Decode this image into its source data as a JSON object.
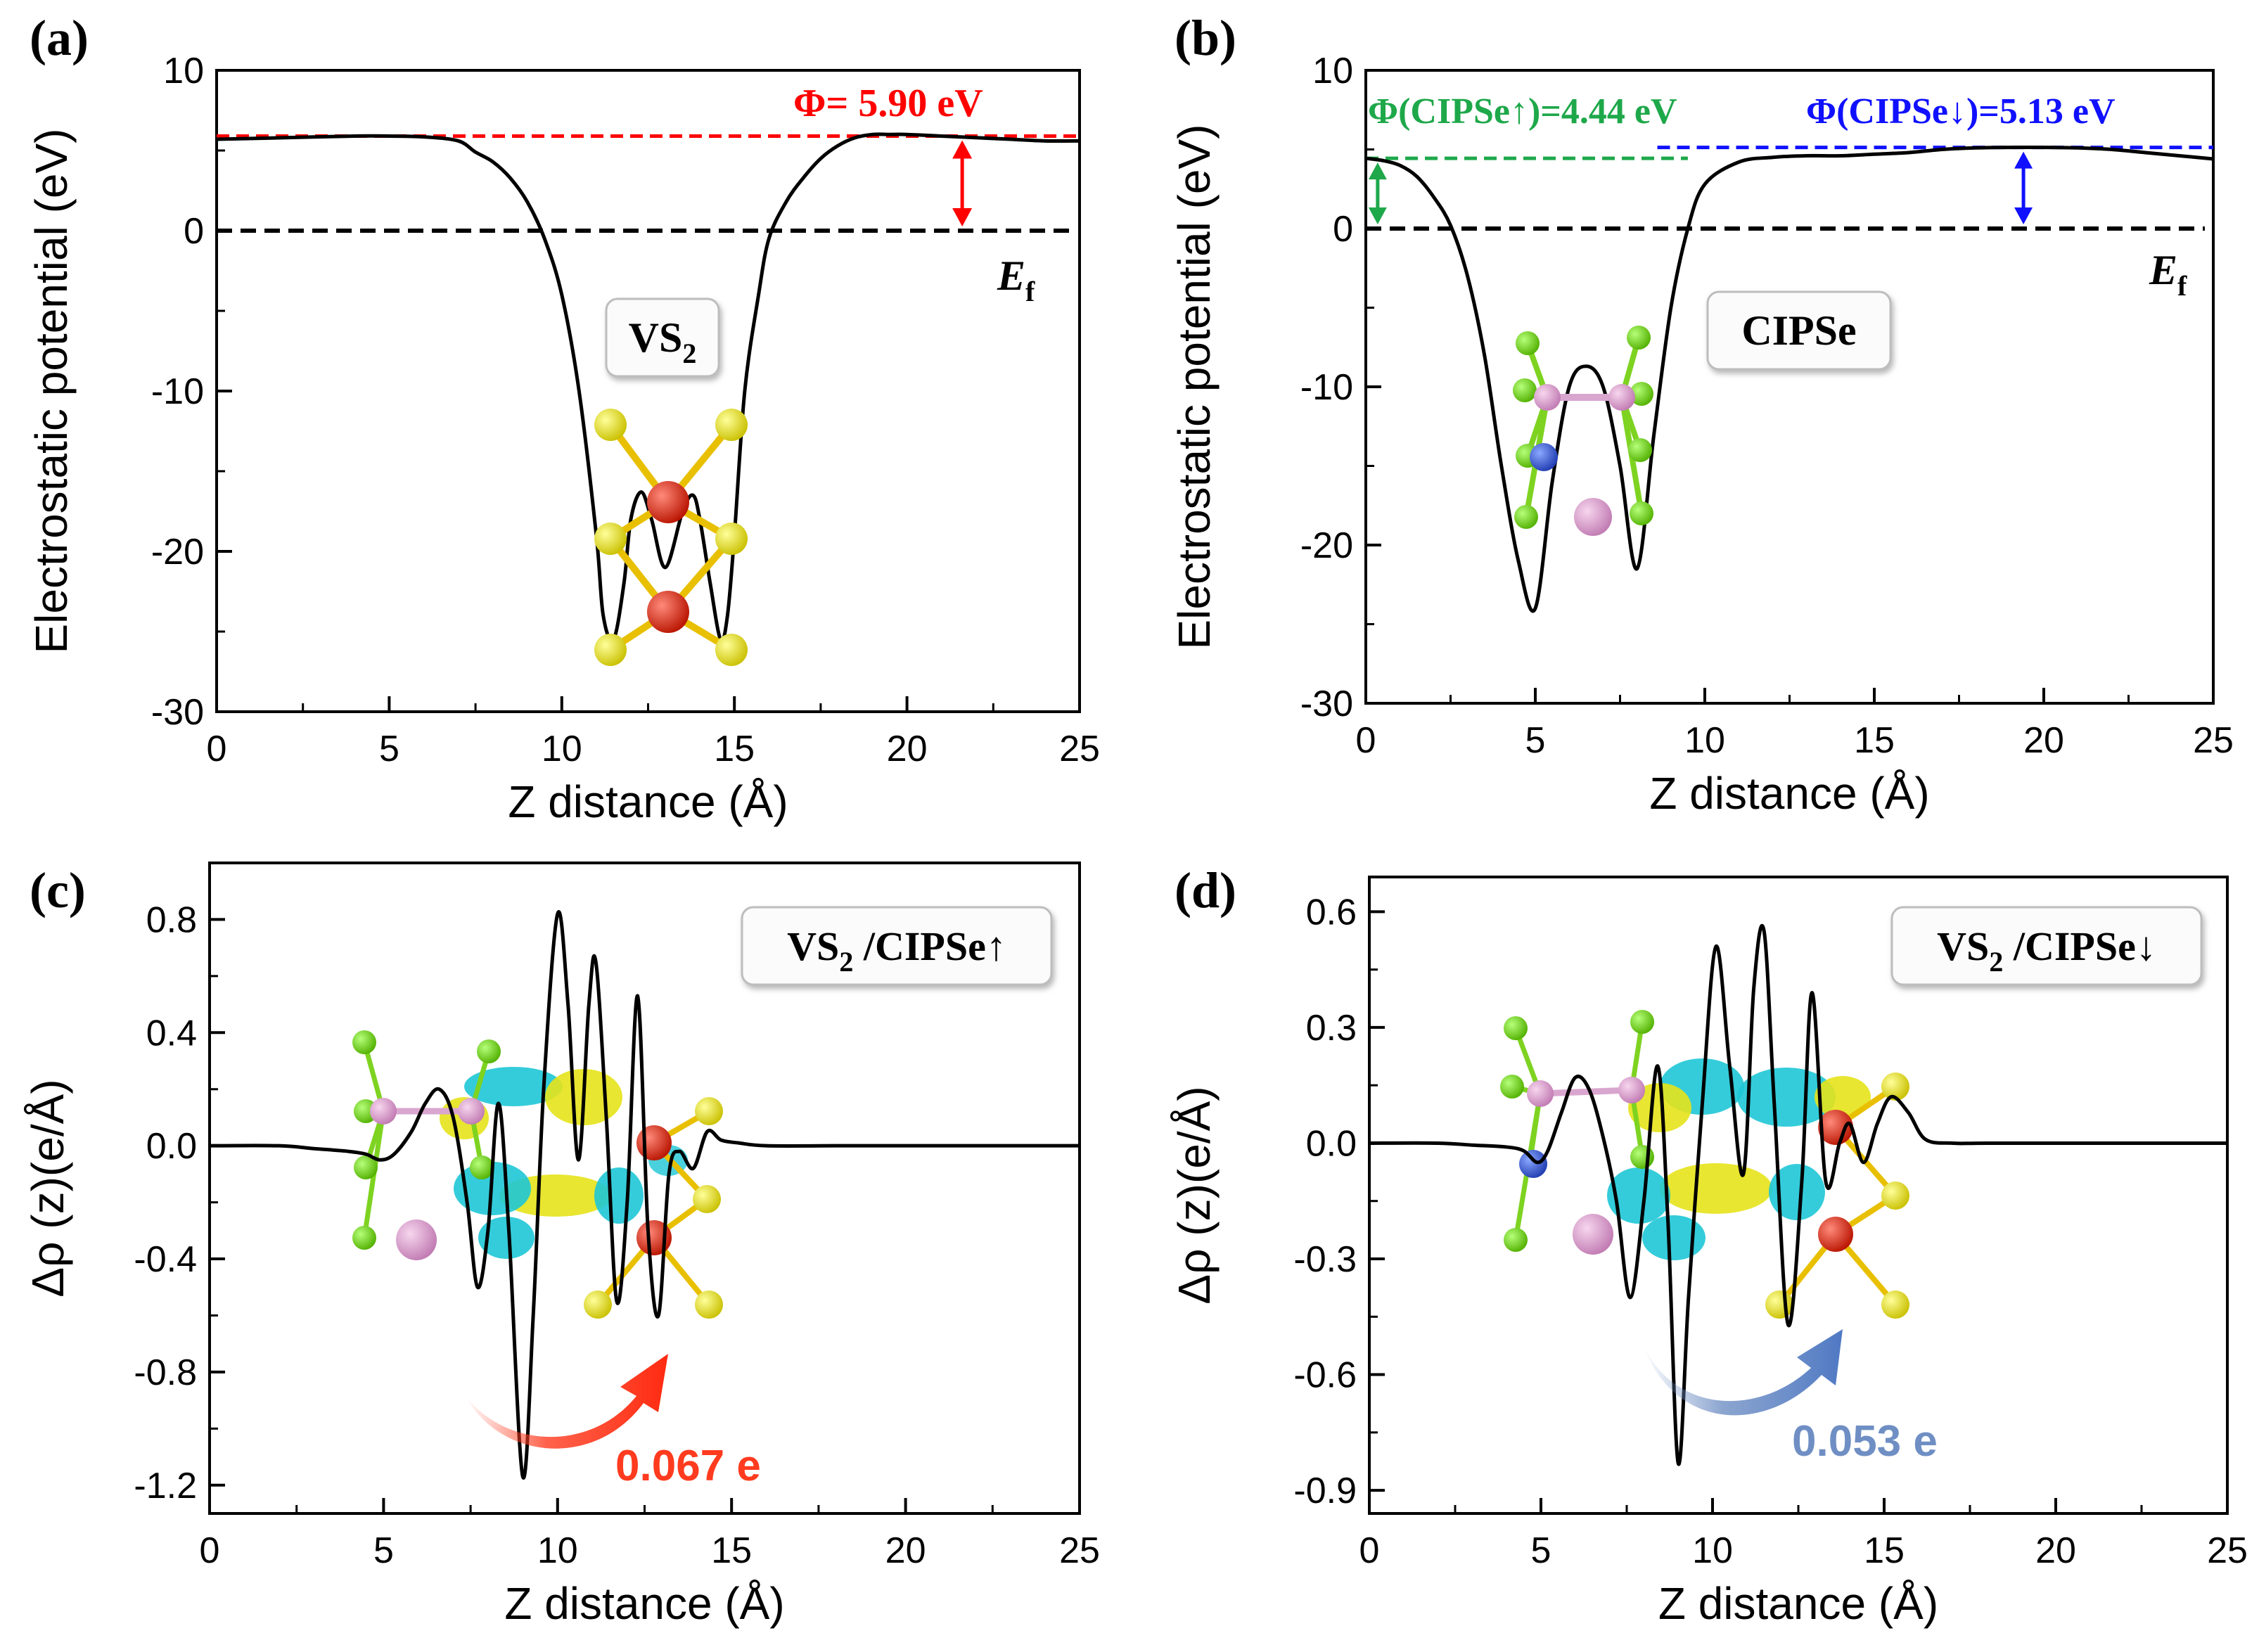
{
  "figure": {
    "panel_labels": [
      "(a)",
      "(b)",
      "(c)",
      "(d)"
    ]
  },
  "chart_data": [
    {
      "id": "a",
      "type": "line",
      "xlabel": "Z distance (Å)",
      "ylabel": "Electrostatic potential (eV)",
      "xlim": [
        0,
        25
      ],
      "ylim": [
        -30,
        10
      ],
      "xticks": [
        0,
        5,
        10,
        15,
        20,
        25
      ],
      "yticks": [
        10,
        0,
        -10,
        -20,
        -30
      ],
      "x": [
        0,
        2,
        4,
        5,
        6,
        7,
        7.5,
        8,
        8.5,
        9,
        9.5,
        10,
        10.5,
        11,
        11.2,
        11.5,
        11.8,
        12,
        12.3,
        12.6,
        13,
        13.5,
        13.8,
        14,
        14.3,
        14.6,
        14.8,
        15,
        15.3,
        15.7,
        16,
        16.5,
        17,
        17.5,
        18,
        18.5,
        19,
        19.5,
        20,
        21,
        22,
        23,
        24,
        25
      ],
      "y": [
        5.7,
        5.8,
        5.9,
        5.9,
        5.85,
        5.6,
        4.9,
        4.3,
        3.3,
        1.8,
        -0.5,
        -4,
        -10,
        -19,
        -24,
        -25.5,
        -22,
        -18,
        -16.3,
        -18,
        -21,
        -17.5,
        -16.5,
        -18,
        -22,
        -25.5,
        -24,
        -19,
        -10,
        -4,
        -0.5,
        1.8,
        3.3,
        4.5,
        5.3,
        5.8,
        6,
        6,
        6,
        5.9,
        5.8,
        5.7,
        5.6,
        5.6
      ],
      "work_function": {
        "label": "Φ= 5.90 eV",
        "value": 5.9,
        "color": "#ff0000"
      },
      "fermi_level": {
        "label": "E",
        "sub": "f",
        "value": 0
      },
      "structure_label": {
        "main": "VS",
        "sub": "2"
      }
    },
    {
      "id": "b",
      "type": "line",
      "xlabel": "Z distance (Å)",
      "ylabel": "Electrostatic potential (eV)",
      "xlim": [
        0,
        25
      ],
      "ylim": [
        -30,
        10
      ],
      "xticks": [
        0,
        5,
        10,
        15,
        20,
        25
      ],
      "yticks": [
        10,
        0,
        -10,
        -20,
        -30
      ],
      "x": [
        0,
        0.5,
        1,
        1.5,
        2,
        2.5,
        3,
        3.5,
        4,
        4.5,
        5,
        5.5,
        6,
        6.5,
        7,
        7.5,
        8,
        8.5,
        9,
        9.5,
        10,
        11,
        12,
        13,
        14,
        15,
        16,
        17,
        18,
        19,
        20,
        21,
        22,
        23,
        24,
        25
      ],
      "y": [
        4.44,
        4.3,
        4,
        3.3,
        2,
        0.2,
        -3,
        -8,
        -15,
        -21,
        -24,
        -16,
        -10,
        -8.7,
        -10,
        -15,
        -21.5,
        -13,
        -5,
        0,
        2.8,
        4.2,
        4.5,
        4.6,
        4.6,
        4.7,
        4.8,
        5,
        5.1,
        5.13,
        5.13,
        5.1,
        5,
        4.8,
        4.6,
        4.4
      ],
      "work_function_up": {
        "label": "Φ(CIPSe↑)=4.44 eV",
        "value": 4.44,
        "color": "#1ea84a"
      },
      "work_function_down": {
        "label": "Φ(CIPSe↓)=5.13 eV",
        "value": 5.13,
        "color": "#1010ff"
      },
      "fermi_level": {
        "label": "E",
        "sub": "f",
        "value": 0
      },
      "structure_label": {
        "main": "CIPSe"
      }
    },
    {
      "id": "c",
      "type": "line",
      "xlabel": "Z distance (Å)",
      "ylabel": "Δρ (z)(e/Å)",
      "xlim": [
        0,
        25
      ],
      "ylim": [
        -1.3,
        1.0
      ],
      "xticks": [
        0,
        5,
        10,
        15,
        20,
        25
      ],
      "yticks": [
        0.8,
        0.4,
        0.0,
        -0.4,
        -0.8,
        -1.2
      ],
      "x": [
        0,
        2,
        3,
        4,
        4.5,
        4.9,
        5.3,
        5.8,
        6.2,
        6.6,
        7,
        7.4,
        7.7,
        8,
        8.3,
        8.6,
        9,
        9.3,
        9.6,
        10,
        10.3,
        10.6,
        10.9,
        11.1,
        11.4,
        11.7,
        12,
        12.3,
        12.6,
        12.9,
        13.2,
        13.5,
        13.9,
        14.3,
        14.7,
        15.2,
        16,
        18,
        20,
        22,
        25
      ],
      "y": [
        0,
        0,
        -0.01,
        -0.02,
        -0.03,
        -0.05,
        -0.03,
        0.05,
        0.15,
        0.2,
        0.1,
        -0.2,
        -0.5,
        -0.3,
        0.15,
        -0.3,
        -1.17,
        -0.6,
        0.2,
        0.82,
        0.5,
        -0.05,
        0.5,
        0.65,
        0.1,
        -0.55,
        -0.2,
        0.53,
        -0.3,
        -0.6,
        -0.1,
        -0.02,
        -0.08,
        0.05,
        0.02,
        0.01,
        0,
        0,
        0,
        0,
        0
      ],
      "structure_label": {
        "main": "VS",
        "sub": "2",
        "rest": " /CIPSe↑"
      },
      "charge_transfer": {
        "label": "0.067 e",
        "color": "#ff3b1f"
      }
    },
    {
      "id": "d",
      "type": "line",
      "xlabel": "Z distance (Å)",
      "ylabel": "Δρ (z)(e/Å)",
      "xlim": [
        0,
        25
      ],
      "ylim": [
        -0.96,
        0.69
      ],
      "xticks": [
        0,
        5,
        10,
        15,
        20,
        25
      ],
      "yticks": [
        0.6,
        0.3,
        0.0,
        -0.3,
        -0.6,
        -0.9
      ],
      "x": [
        0,
        2,
        3,
        4,
        4.5,
        4.9,
        5.2,
        5.6,
        6,
        6.4,
        6.8,
        7.2,
        7.6,
        8,
        8.4,
        8.7,
        9,
        9.3,
        9.7,
        10.1,
        10.5,
        10.9,
        11.2,
        11.5,
        11.8,
        12.2,
        12.6,
        12.9,
        13.3,
        13.7,
        14,
        14.4,
        14.8,
        15.2,
        15.7,
        16.2,
        17,
        18,
        20,
        22,
        25
      ],
      "y": [
        0,
        0,
        -0.005,
        -0.01,
        -0.02,
        -0.05,
        -0.02,
        0.08,
        0.17,
        0.14,
        0.02,
        -0.15,
        -0.4,
        -0.15,
        0.2,
        -0.2,
        -0.83,
        -0.4,
        0.1,
        0.51,
        0.2,
        -0.08,
        0.4,
        0.55,
        0.1,
        -0.47,
        -0.1,
        0.39,
        -0.1,
        0,
        0.05,
        -0.05,
        0.05,
        0.12,
        0.08,
        0.01,
        0,
        0,
        0,
        0,
        0
      ],
      "structure_label": {
        "main": "VS",
        "sub": "2",
        "rest": " /CIPSe↓"
      },
      "charge_transfer": {
        "label": "0.053 e",
        "color": "#6f8fc4"
      }
    }
  ]
}
